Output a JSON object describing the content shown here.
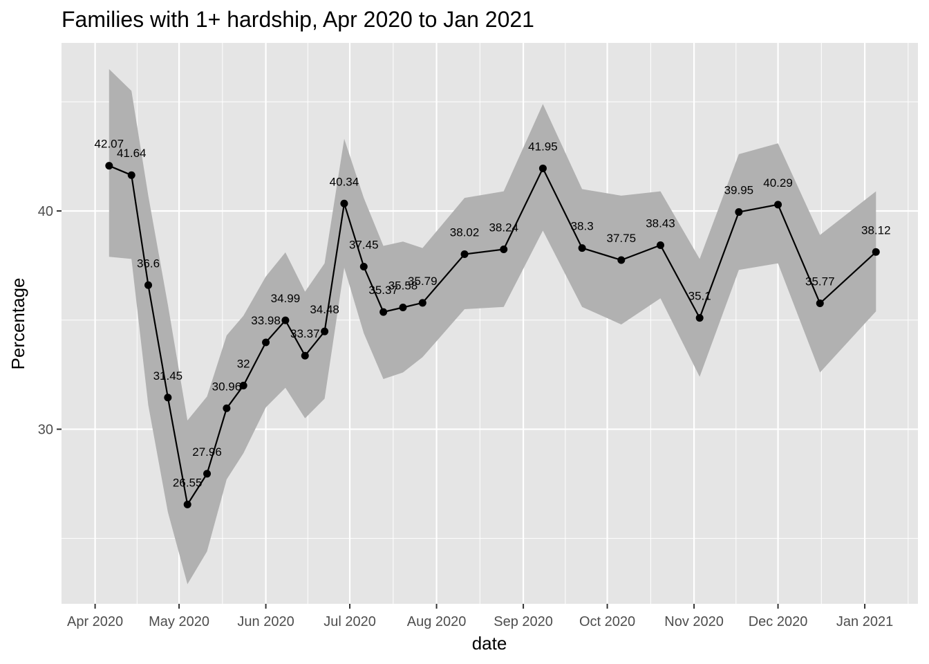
{
  "chart_data": {
    "type": "line",
    "title": "Families with 1+ hardship, Apr 2020 to Jan 2021",
    "xlabel": "date",
    "ylabel": "Percentage",
    "x_ticks": [
      {
        "date": "2020-04-01",
        "label": "Apr 2020"
      },
      {
        "date": "2020-05-01",
        "label": "May 2020"
      },
      {
        "date": "2020-06-01",
        "label": "Jun 2020"
      },
      {
        "date": "2020-07-01",
        "label": "Jul 2020"
      },
      {
        "date": "2020-08-01",
        "label": "Aug 2020"
      },
      {
        "date": "2020-09-01",
        "label": "Sep 2020"
      },
      {
        "date": "2020-10-01",
        "label": "Oct 2020"
      },
      {
        "date": "2020-11-01",
        "label": "Nov 2020"
      },
      {
        "date": "2020-12-01",
        "label": "Dec 2020"
      },
      {
        "date": "2021-01-01",
        "label": "Jan 2021"
      }
    ],
    "y_ticks": [
      30,
      40
    ],
    "xlim": [
      "2020-03-20",
      "2021-01-20"
    ],
    "ylim": [
      22,
      47.7
    ],
    "grid": true,
    "legend": "none",
    "colors": {
      "panel": "#e5e5e5",
      "ribbon": "#b1b1b1",
      "line": "#000000",
      "grid": "#ffffff"
    },
    "series": [
      {
        "points": [
          {
            "x": "2020-04-06",
            "y": 42.07,
            "label": "42.07",
            "lower": 37.9,
            "upper": 46.5
          },
          {
            "x": "2020-04-14",
            "y": 41.64,
            "label": "41.64",
            "lower": 37.8,
            "upper": 45.5
          },
          {
            "x": "2020-04-20",
            "y": 36.6,
            "label": "36.6",
            "lower": 31.1,
            "upper": 40.7
          },
          {
            "x": "2020-04-27",
            "y": 31.45,
            "label": "31.45",
            "lower": 26.2,
            "upper": 35.7
          },
          {
            "x": "2020-05-04",
            "y": 26.55,
            "label": "26.55",
            "lower": 22.9,
            "upper": 30.4
          },
          {
            "x": "2020-05-11",
            "y": 27.96,
            "label": "27.96",
            "lower": 24.4,
            "upper": 31.5
          },
          {
            "x": "2020-05-18",
            "y": 30.96,
            "label": "30.96",
            "lower": 27.7,
            "upper": 34.3
          },
          {
            "x": "2020-05-24",
            "y": 32.0,
            "label": "32",
            "lower": 28.9,
            "upper": 35.2
          },
          {
            "x": "2020-06-01",
            "y": 33.98,
            "label": "33.98",
            "lower": 31.0,
            "upper": 37.0
          },
          {
            "x": "2020-06-08",
            "y": 34.99,
            "label": "34.99",
            "lower": 31.9,
            "upper": 38.1
          },
          {
            "x": "2020-06-15",
            "y": 33.37,
            "label": "33.37",
            "lower": 30.5,
            "upper": 36.3
          },
          {
            "x": "2020-06-22",
            "y": 34.48,
            "label": "34.48",
            "lower": 31.4,
            "upper": 37.6
          },
          {
            "x": "2020-06-29",
            "y": 40.34,
            "label": "40.34",
            "lower": 37.4,
            "upper": 43.3
          },
          {
            "x": "2020-07-06",
            "y": 37.45,
            "label": "37.45",
            "lower": 34.4,
            "upper": 40.6
          },
          {
            "x": "2020-07-13",
            "y": 35.37,
            "label": "35.37",
            "lower": 32.3,
            "upper": 38.4
          },
          {
            "x": "2020-07-20",
            "y": 35.58,
            "label": "35.58",
            "lower": 32.6,
            "upper": 38.6
          },
          {
            "x": "2020-07-27",
            "y": 35.79,
            "label": "35.79",
            "lower": 33.3,
            "upper": 38.3
          },
          {
            "x": "2020-08-11",
            "y": 38.02,
            "label": "38.02",
            "lower": 35.5,
            "upper": 40.6
          },
          {
            "x": "2020-08-25",
            "y": 38.24,
            "label": "38.24",
            "lower": 35.6,
            "upper": 40.9
          },
          {
            "x": "2020-09-08",
            "y": 41.95,
            "label": "41.95",
            "lower": 39.1,
            "upper": 44.9
          },
          {
            "x": "2020-09-22",
            "y": 38.3,
            "label": "38.3",
            "lower": 35.6,
            "upper": 41.0
          },
          {
            "x": "2020-10-06",
            "y": 37.75,
            "label": "37.75",
            "lower": 34.8,
            "upper": 40.7
          },
          {
            "x": "2020-10-20",
            "y": 38.43,
            "label": "38.43",
            "lower": 36.0,
            "upper": 40.9
          },
          {
            "x": "2020-11-03",
            "y": 35.1,
            "label": "35.1",
            "lower": 32.4,
            "upper": 37.8
          },
          {
            "x": "2020-11-17",
            "y": 39.95,
            "label": "39.95",
            "lower": 37.3,
            "upper": 42.6
          },
          {
            "x": "2020-12-01",
            "y": 40.29,
            "label": "40.29",
            "lower": 37.6,
            "upper": 43.1
          },
          {
            "x": "2020-12-16",
            "y": 35.77,
            "label": "35.77",
            "lower": 32.6,
            "upper": 38.9
          },
          {
            "x": "2021-01-05",
            "y": 38.12,
            "label": "38.12",
            "lower": 35.4,
            "upper": 40.9
          }
        ]
      }
    ]
  }
}
